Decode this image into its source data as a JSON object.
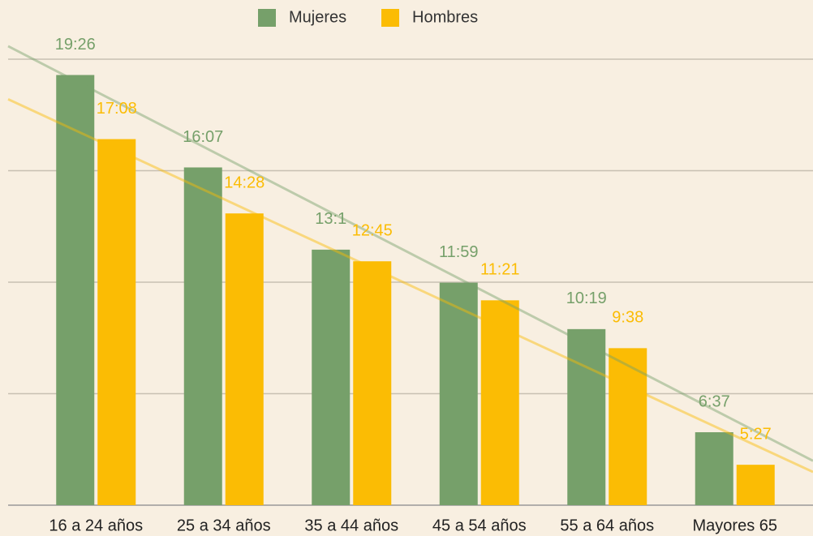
{
  "chart_data": {
    "type": "bar",
    "categories": [
      "16 a 24 años",
      "25 a 34 años",
      "35 a 44 años",
      "45 a 54 años",
      "55 a 64 años",
      "Mayores 65"
    ],
    "series": [
      {
        "name": "Mujeres",
        "color": "#76a06a",
        "values": [
          19.433,
          16.117,
          13.167,
          11.983,
          10.317,
          6.617
        ],
        "value_labels": [
          "19:26",
          "16:07",
          "13:1",
          "11:59",
          "10:19",
          "6:37"
        ]
      },
      {
        "name": "Hombres",
        "color": "#fbbc04",
        "values": [
          17.133,
          14.467,
          12.75,
          11.35,
          9.633,
          5.45
        ],
        "value_labels": [
          "17:08",
          "14:28",
          "12:45",
          "11:21",
          "9:38",
          "5:27"
        ]
      }
    ],
    "ylim": [
      4,
      20
    ],
    "yticks": [
      4,
      8,
      12,
      16,
      20
    ],
    "grid": true,
    "trendline": true,
    "legend": "top"
  }
}
